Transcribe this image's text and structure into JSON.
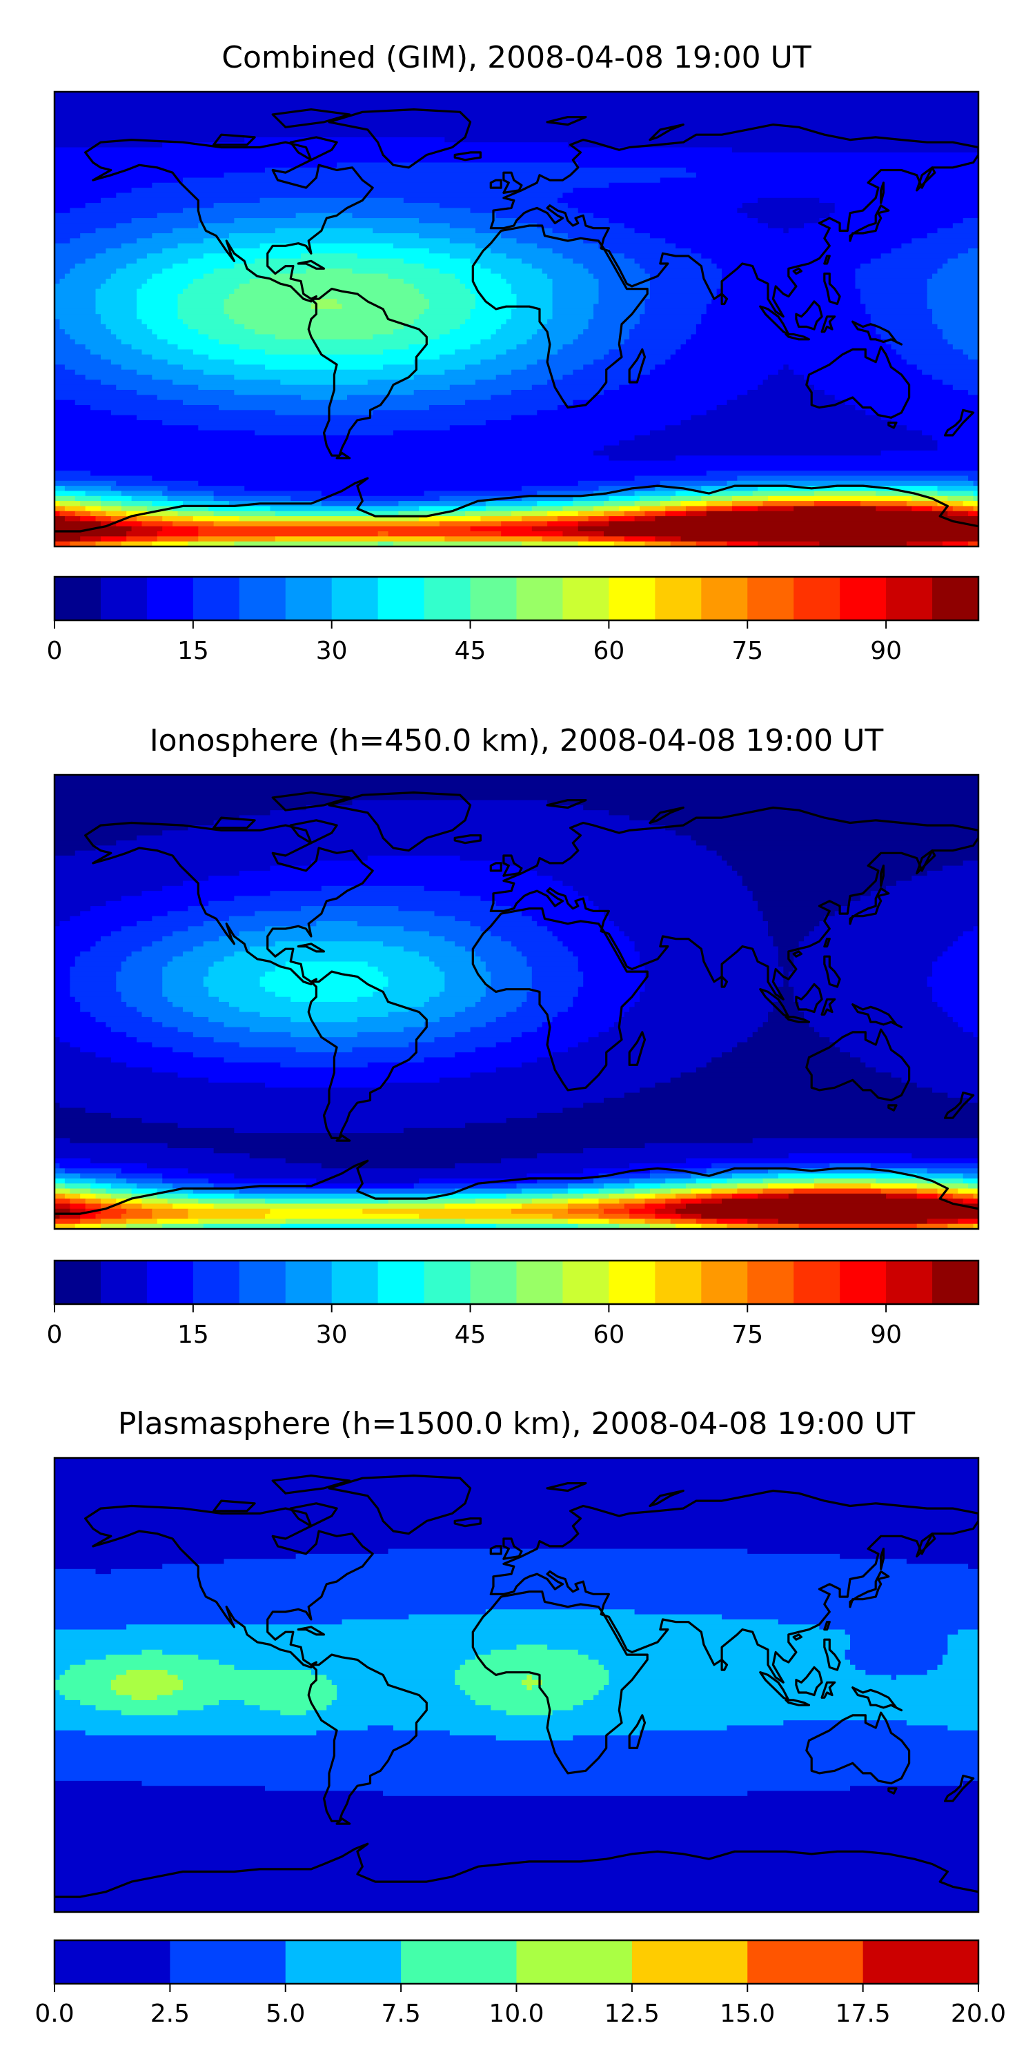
{
  "chart_data": [
    {
      "type": "heatmap",
      "title": "Combined (GIM), 2008-04-08 19:00 UT",
      "colorbar": {
        "vmin": 0,
        "vmax": 100,
        "step": 5,
        "ticks": [
          0,
          15,
          30,
          45,
          60,
          75,
          90
        ],
        "tick_labels": [
          "0",
          "15",
          "30",
          "45",
          "60",
          "75",
          "90"
        ],
        "colors": [
          "#00008f",
          "#0000cc",
          "#0000ff",
          "#0033ff",
          "#0066ff",
          "#0099ff",
          "#00ccff",
          "#00ffff",
          "#33ffcc",
          "#66ff99",
          "#99ff66",
          "#ccff33",
          "#ffff00",
          "#ffcc00",
          "#ff9900",
          "#ff6600",
          "#ff3300",
          "#ff0000",
          "#cc0000",
          "#8f0000"
        ]
      },
      "background_level": 8,
      "features": [
        {
          "lon": -75,
          "lat": 5,
          "rx": 110,
          "ry": 38,
          "peak": 42
        },
        {
          "lon": 60,
          "lat": 58,
          "rx": 140,
          "ry": 8,
          "peak": 6
        },
        {
          "lon": 70,
          "lat": 20,
          "rx": 130,
          "ry": 12,
          "peak": 2
        },
        {
          "lon": 130,
          "lat": -82,
          "rx": 90,
          "ry": 14,
          "peak": 92
        },
        {
          "lon": -60,
          "lat": -85,
          "rx": 160,
          "ry": 6,
          "peak": 50
        },
        {
          "lon": 20,
          "lat": -80,
          "rx": 180,
          "ry": 8,
          "peak": 35
        }
      ]
    },
    {
      "type": "heatmap",
      "title": "Ionosphere  (h=450.0 km), 2008-04-08 19:00 UT",
      "colorbar": {
        "vmin": 0,
        "vmax": 100,
        "step": 5,
        "ticks": [
          0,
          15,
          30,
          45,
          60,
          75,
          90
        ],
        "tick_labels": [
          "0",
          "15",
          "30",
          "45",
          "60",
          "75",
          "90"
        ],
        "colors": [
          "#00008f",
          "#0000cc",
          "#0000ff",
          "#0033ff",
          "#0066ff",
          "#0099ff",
          "#00ccff",
          "#00ffff",
          "#33ffcc",
          "#66ff99",
          "#99ff66",
          "#ccff33",
          "#ffff00",
          "#ffcc00",
          "#ff9900",
          "#ff6600",
          "#ff3300",
          "#ff0000",
          "#cc0000",
          "#8f0000"
        ]
      },
      "background_level": 4,
      "features": [
        {
          "lon": -75,
          "lat": 8,
          "rx": 95,
          "ry": 32,
          "peak": 33
        },
        {
          "lon": -20,
          "lat": 50,
          "rx": 80,
          "ry": 25,
          "peak": 4
        },
        {
          "lon": 130,
          "lat": -82,
          "rx": 85,
          "ry": 13,
          "peak": 88
        },
        {
          "lon": -60,
          "lat": -85,
          "rx": 160,
          "ry": 6,
          "peak": 45
        },
        {
          "lon": 20,
          "lat": -80,
          "rx": 180,
          "ry": 7,
          "peak": 28
        }
      ]
    },
    {
      "type": "heatmap",
      "title": "Plasmasphere (h=1500.0 km), 2008-04-08 19:00 UT",
      "colorbar": {
        "vmin": 0,
        "vmax": 20,
        "step": 2.5,
        "ticks": [
          0,
          2.5,
          5,
          7.5,
          10,
          12.5,
          15,
          17.5,
          20
        ],
        "tick_labels": [
          "0.0",
          "2.5",
          "5.0",
          "7.5",
          "10.0",
          "12.5",
          "15.0",
          "17.5",
          "20.0"
        ],
        "colors": [
          "#0000cc",
          "#0044ff",
          "#00bbff",
          "#44ffaa",
          "#aaff44",
          "#ffcc00",
          "#ff5500",
          "#cc0000"
        ]
      },
      "background_level": 1.8,
      "features": [
        {
          "lon": 20,
          "lat": 5,
          "rx": 200,
          "ry": 35,
          "peak": 5.2
        },
        {
          "lon": -150,
          "lat": 0,
          "rx": 55,
          "ry": 22,
          "peak": 3.8
        },
        {
          "lon": -145,
          "lat": 0,
          "rx": 22,
          "ry": 10,
          "peak": 3.0
        },
        {
          "lon": -85,
          "lat": -5,
          "rx": 18,
          "ry": 10,
          "peak": 2.7
        },
        {
          "lon": 5,
          "lat": 0,
          "rx": 24,
          "ry": 14,
          "peak": 3.2
        },
        {
          "lon": 150,
          "lat": 10,
          "rx": 20,
          "ry": 8,
          "peak": -2.8
        }
      ]
    }
  ]
}
